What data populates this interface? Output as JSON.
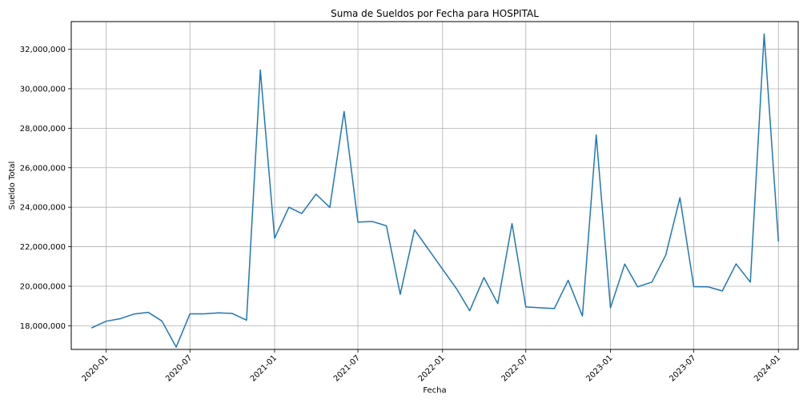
{
  "chart_data": {
    "type": "line",
    "title": "Suma de Sueldos por Fecha para HOSPITAL",
    "xlabel": "Fecha",
    "ylabel": "Sueldo Total",
    "grid": true,
    "line_color": "#1f77b4",
    "x_ticks": [
      "2020-01",
      "2020-07",
      "2021-01",
      "2021-07",
      "2022-01",
      "2022-07",
      "2023-01",
      "2023-07",
      "2024-01"
    ],
    "y_ticks": [
      "18,000,000",
      "20,000,000",
      "22,000,000",
      "24,000,000",
      "26,000,000",
      "28,000,000",
      "30,000,000",
      "32,000,000"
    ],
    "y_tick_values": [
      18000000,
      20000000,
      22000000,
      24000000,
      26000000,
      28000000,
      30000000,
      32000000
    ],
    "xlim": [
      "2019-10-17",
      "2024-02-13"
    ],
    "ylim": [
      16800000,
      33400000
    ],
    "series": [
      {
        "x": [
          "2019-12-01",
          "2020-01-01",
          "2020-02-01",
          "2020-03-01",
          "2020-04-01",
          "2020-05-01",
          "2020-06-01",
          "2020-07-01",
          "2020-08-01",
          "2020-09-01",
          "2020-10-01",
          "2020-11-01",
          "2020-12-01",
          "2021-01-01",
          "2021-02-01",
          "2021-03-01",
          "2021-04-01",
          "2021-05-01",
          "2021-06-01",
          "2021-07-01",
          "2021-08-01",
          "2021-09-01",
          "2021-10-01",
          "2021-11-01",
          "2022-02-01",
          "2022-03-01",
          "2022-04-01",
          "2022-05-01",
          "2022-06-01",
          "2022-07-01",
          "2022-09-01",
          "2022-10-01",
          "2022-11-01",
          "2022-12-01",
          "2023-01-01",
          "2023-02-01",
          "2023-03-01",
          "2023-04-01",
          "2023-05-01",
          "2023-06-01",
          "2023-07-01",
          "2023-08-01",
          "2023-09-01",
          "2023-10-01",
          "2023-11-01",
          "2023-12-01",
          "2024-01-01"
        ],
        "y": [
          17900000,
          18230000,
          18360000,
          18590000,
          18680000,
          18240000,
          16920000,
          18600000,
          18600000,
          18650000,
          18620000,
          18280000,
          30950000,
          22430000,
          24000000,
          23680000,
          24660000,
          23990000,
          28850000,
          23250000,
          23280000,
          23060000,
          19590000,
          22860000,
          19850000,
          18760000,
          20440000,
          19120000,
          23170000,
          18950000,
          18870000,
          20300000,
          18490000,
          27660000,
          18910000,
          21120000,
          19970000,
          20210000,
          21570000,
          24480000,
          19980000,
          19970000,
          19760000,
          21130000,
          20210000,
          32770000,
          22290000
        ]
      }
    ]
  }
}
